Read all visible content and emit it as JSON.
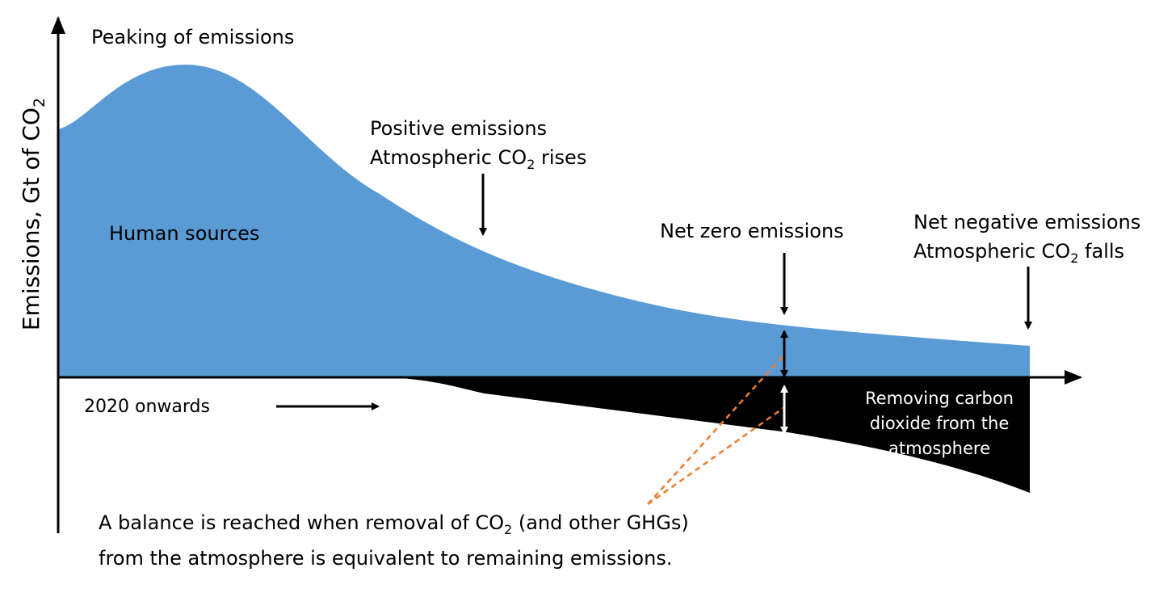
{
  "y_axis_label": {
    "text": "Emissions, Gt of CO",
    "sub": "2"
  },
  "annotations": {
    "peaking": "Peaking of emissions",
    "positive": {
      "line1": "Positive emissions",
      "line2": {
        "text": "Atmospheric CO",
        "sub": "2",
        "tail": " rises"
      }
    },
    "human_sources": "Human sources",
    "net_zero": "Net zero emissions",
    "net_negative": {
      "line1": "Net negative emissions",
      "line2": {
        "text": "Atmospheric CO",
        "sub": "2",
        "tail": " falls"
      }
    },
    "onwards": "2020 onwards",
    "removing": [
      "Removing carbon",
      "dioxide from the",
      "atmosphere"
    ],
    "balance": {
      "line1": {
        "text": "A balance is reached when removal of CO",
        "sub": "2",
        "tail": " (and other GHGs)"
      },
      "line2": "from the atmosphere is equivalent to remaining emissions."
    }
  }
}
